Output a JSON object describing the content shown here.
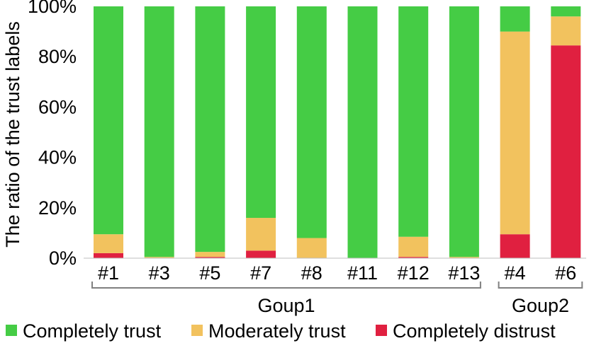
{
  "chart_data": {
    "type": "bar",
    "stacked": true,
    "ylabel": "The ratio of  the trust labels",
    "ylim": [
      0,
      100
    ],
    "yticks": [
      0,
      20,
      40,
      60,
      80,
      100
    ],
    "ytick_suffix": "%",
    "categories": [
      "#1",
      "#3",
      "#5",
      "#7",
      "#8",
      "#11",
      "#12",
      "#13",
      "#4",
      "#6"
    ],
    "groups": [
      {
        "label": "Goup1",
        "members": [
          "#1",
          "#3",
          "#5",
          "#7",
          "#8",
          "#11",
          "#12",
          "#13"
        ]
      },
      {
        "label": "Goup2",
        "members": [
          "#4",
          "#6"
        ]
      }
    ],
    "series": [
      {
        "name": "Completely distrust",
        "color": "#e02040",
        "values": [
          2,
          0,
          0.5,
          3,
          0,
          0,
          0.5,
          0,
          9.5,
          84.5
        ]
      },
      {
        "name": "Moderately trust",
        "color": "#f2c25e",
        "values": [
          7.5,
          0.5,
          2,
          13,
          8,
          0,
          8,
          0.5,
          80.5,
          11.5
        ]
      },
      {
        "name": "Completely trust",
        "color": "#45cc45",
        "values": [
          90.5,
          99.5,
          97.5,
          84,
          92,
          100,
          91.5,
          99.5,
          10,
          4
        ]
      }
    ],
    "legend_position": "bottom",
    "grid": false
  }
}
